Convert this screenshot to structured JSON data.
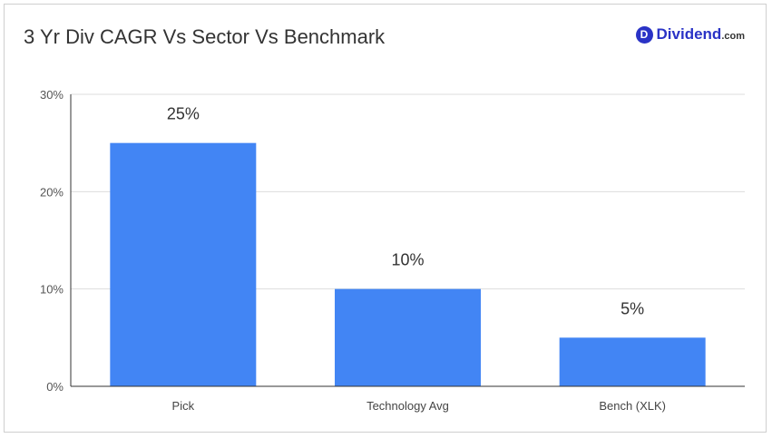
{
  "header": {
    "title": "3 Yr Div CAGR Vs Sector Vs Benchmark"
  },
  "logo": {
    "name": "Dividend",
    "tld": ".com",
    "mark": "D",
    "color": "#2a33c6"
  },
  "chart_data": {
    "type": "bar",
    "categories": [
      "Pick",
      "Technology Avg",
      "Bench (XLK)"
    ],
    "values": [
      25,
      10,
      5
    ],
    "data_labels": [
      "25%",
      "10%",
      "5%"
    ],
    "y_ticks": [
      "0%",
      "10%",
      "20%",
      "30%"
    ],
    "ylim": [
      0,
      30
    ],
    "grid": true,
    "bar_color": "#4285f4"
  }
}
